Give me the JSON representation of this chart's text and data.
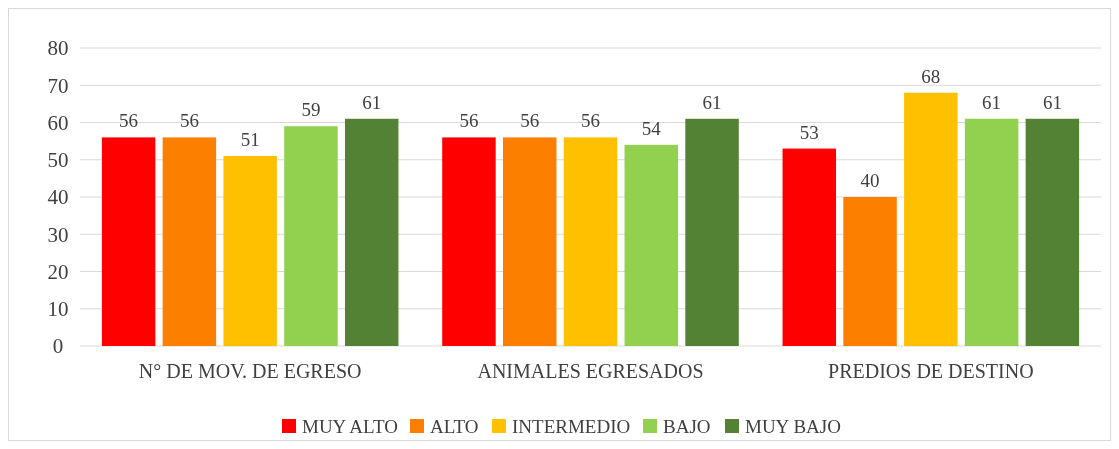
{
  "chart_data": {
    "type": "bar",
    "categories": [
      "N° DE MOV. DE EGRESO",
      "ANIMALES EGRESADOS",
      "PREDIOS DE DESTINO"
    ],
    "series": [
      {
        "name": "MUY ALTO",
        "color": "#ff0000",
        "values": [
          56,
          56,
          53
        ]
      },
      {
        "name": "ALTO",
        "color": "#fd7f00",
        "values": [
          56,
          56,
          40
        ]
      },
      {
        "name": "INTERMEDIO",
        "color": "#ffc000",
        "values": [
          51,
          56,
          68
        ]
      },
      {
        "name": "BAJO",
        "color": "#92d050",
        "values": [
          59,
          54,
          61
        ]
      },
      {
        "name": "MUY BAJO",
        "color": "#548235",
        "values": [
          61,
          61,
          61
        ]
      }
    ],
    "ylim": [
      0,
      80
    ],
    "yticks": [
      0,
      10,
      20,
      30,
      40,
      50,
      60,
      70,
      80
    ],
    "grid": "y",
    "legend": "bottom",
    "data_labels": true
  }
}
